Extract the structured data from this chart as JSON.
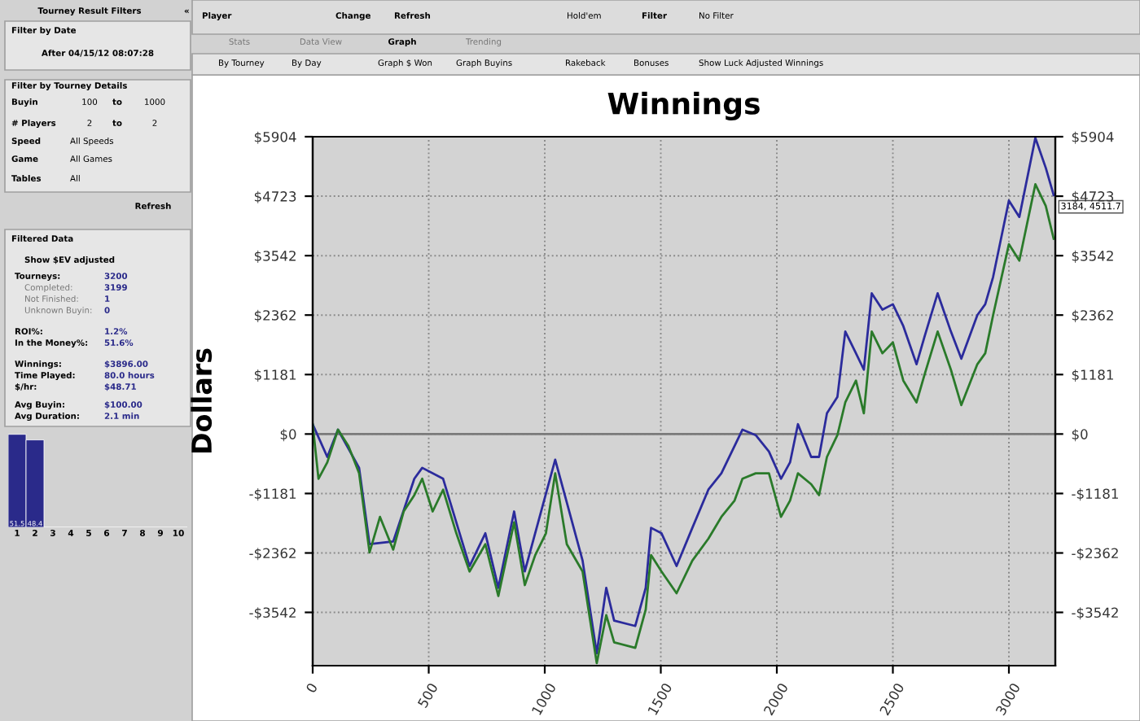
{
  "chart_data": [
    {
      "type": "line",
      "title": "Winnings",
      "ylabel": "Dollars",
      "xlim": [
        0,
        3200
      ],
      "ylim": [
        -4600,
        5904
      ],
      "xticks": [
        0,
        500,
        1000,
        1500,
        2000,
        2500,
        3000
      ],
      "yticks": [
        {
          "value": 5904,
          "label": "$5904"
        },
        {
          "value": 4723,
          "label": "$4723"
        },
        {
          "value": 3542,
          "label": "$3542"
        },
        {
          "value": 2362,
          "label": "$2362"
        },
        {
          "value": 1181,
          "label": "$1181"
        },
        {
          "value": 0,
          "label": "$0"
        },
        {
          "value": -1181,
          "label": "-$1181"
        },
        {
          "value": -2362,
          "label": "-$2362"
        },
        {
          "value": -3542,
          "label": "-$3542"
        }
      ],
      "y2lim": [
        -4600,
        5904
      ],
      "y2ticks": [
        {
          "value": 5904,
          "label": "$5904"
        },
        {
          "value": 4723,
          "label": "$4723"
        },
        {
          "value": 3542,
          "label": "$3542"
        },
        {
          "value": 2362,
          "label": "$2362"
        },
        {
          "value": 1181,
          "label": "$1181"
        },
        {
          "value": 0,
          "label": "$0"
        },
        {
          "value": -1181,
          "label": "-$1181"
        },
        {
          "value": -2362,
          "label": "-$2362"
        },
        {
          "value": -3542,
          "label": "-$3542"
        }
      ],
      "grid": true,
      "ref_lines": [
        {
          "axis": "y",
          "value": 0,
          "color": "#7a7a7a",
          "line_style": "solid"
        }
      ],
      "series": [
        {
          "color": "#2b2b9c",
          "x": [
            0,
            63,
            109,
            200,
            245,
            347,
            438,
            472,
            562,
            676,
            744,
            800,
            868,
            914,
            1045,
            1163,
            1224,
            1265,
            1299,
            1390,
            1435,
            1458,
            1503,
            1568,
            1636,
            1705,
            1761,
            1852,
            1909,
            1966,
            2018,
            2057,
            2091,
            2148,
            2182,
            2216,
            2261,
            2295,
            2341,
            2375,
            2409,
            2455,
            2500,
            2545,
            2602,
            2636,
            2693,
            2750,
            2795,
            2864,
            2898,
            2932,
            3000,
            3045,
            3114,
            3159,
            3193
          ],
          "values": [
            195,
            -455,
            87,
            -671,
            -2188,
            -2133,
            -888,
            -671,
            -888,
            -2621,
            -1971,
            -3054,
            -1538,
            -2729,
            -509,
            -2513,
            -4354,
            -3054,
            -3704,
            -3812,
            -3054,
            -1863,
            -1971,
            -2621,
            -1863,
            -1105,
            -780,
            87,
            -22,
            -347,
            -888,
            -563,
            195,
            -455,
            -455,
            412,
            736,
            2036,
            1603,
            1278,
            2794,
            2469,
            2577,
            2144,
            1386,
            1928,
            2794,
            2036,
            1495,
            2361,
            2577,
            3119,
            4635,
            4310,
            5880,
            5284,
            4743
          ]
        },
        {
          "color": "#2a7a2a",
          "x": [
            0,
            25,
            63,
            109,
            154,
            200,
            245,
            290,
            347,
            392,
            438,
            472,
            517,
            562,
            619,
            676,
            744,
            800,
            868,
            914,
            959,
            1005,
            1045,
            1095,
            1163,
            1224,
            1265,
            1299,
            1390,
            1435,
            1458,
            1503,
            1568,
            1636,
            1705,
            1761,
            1818,
            1852,
            1909,
            1966,
            2018,
            2057,
            2091,
            2148,
            2182,
            2216,
            2261,
            2295,
            2341,
            2375,
            2409,
            2455,
            2500,
            2545,
            2602,
            2636,
            2693,
            2750,
            2795,
            2864,
            2898,
            2932,
            3000,
            3045,
            3114,
            3159,
            3193
          ],
          "values": [
            195,
            -888,
            -563,
            87,
            -238,
            -780,
            -2350,
            -1646,
            -2296,
            -1538,
            -1213,
            -888,
            -1538,
            -1105,
            -1971,
            -2729,
            -2188,
            -3216,
            -1754,
            -3000,
            -2404,
            -1971,
            -780,
            -2188,
            -2729,
            -4550,
            -3595,
            -4137,
            -4245,
            -3487,
            -2404,
            -2729,
            -3162,
            -2513,
            -2079,
            -1646,
            -1321,
            -888,
            -780,
            -780,
            -1646,
            -1321,
            -780,
            -996,
            -1213,
            -455,
            -22,
            628,
            1061,
            412,
            2036,
            1603,
            1820,
            1061,
            628,
            1170,
            2036,
            1278,
            574,
            1386,
            1603,
            2361,
            3769,
            3444,
            4960,
            4527,
            3877
          ]
        }
      ],
      "annotations": [
        "Tourney Result Filters",
        "«",
        "Filter by Date",
        "After 04/15/12 08:07:28",
        "Filter by Tourney Details",
        "Buyin",
        "100",
        "to",
        "1000",
        "# Players",
        "2",
        "to",
        "2",
        "Speed",
        "All Speeds",
        "Game",
        "All Games",
        "Tables",
        "All",
        "Refresh",
        "Filtered Data",
        "Show $EV adjusted",
        "Tourneys:",
        "3200",
        "Completed:",
        "3199",
        "Not Finished:",
        "1",
        "Unknown Buyin:",
        "0",
        "ROI%:",
        "1.2%",
        "In the Money%:",
        "51.6%",
        "Winnings:",
        "$3896.00",
        "Time Played:",
        "80.0 hours",
        "$/hr:",
        "$48.71",
        "Avg Buyin:",
        "$100.00",
        "Avg Duration:",
        "2.1 min",
        "Player",
        "Change",
        "Refresh",
        "Hold'em",
        "Filter",
        "No Filter",
        "Stats",
        "Data View",
        "Graph",
        "Trending",
        "By Tourney",
        "By Day",
        "Graph $ Won",
        "Graph Buyins",
        "Rakeback",
        "Bonuses",
        "Show Luck Adjusted Winnings",
        {
          "text": "3184, 4511.7",
          "x": 3184,
          "y": 4511.7
        }
      ]
    },
    {
      "type": "bar",
      "categories": [
        "1",
        "2",
        "3",
        "4",
        "5",
        "6",
        "7",
        "8",
        "9",
        "10"
      ],
      "values": [
        51.5,
        48.4,
        0,
        0,
        0,
        0,
        0,
        0,
        0,
        0
      ],
      "color": "#2a2a8a",
      "value_labels": [
        "51.5",
        "48.4",
        null,
        null,
        null,
        null,
        null,
        null,
        null,
        null
      ]
    }
  ]
}
